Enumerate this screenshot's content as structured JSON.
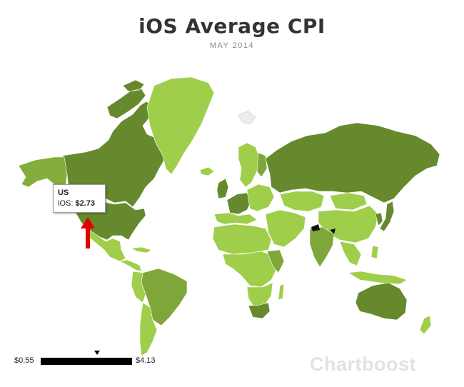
{
  "title": "iOS Average CPI",
  "subtitle": "MAY 2014",
  "tooltip": {
    "country": "US",
    "label": "iOS:",
    "value": "$2.73"
  },
  "legend": {
    "min": "$0.55",
    "max": "$4.13",
    "marker_value": 2.73,
    "gradient_colors": [
      "#a8d656",
      "#5e7e2a"
    ]
  },
  "brand": "Chartboost",
  "colors": {
    "ocean": "#ffffff",
    "light_green": "#9fce4a",
    "mid_green": "#7fa639",
    "dark_green": "#5f8428",
    "no_data": "#ececec",
    "arrow": "#e00000"
  }
}
